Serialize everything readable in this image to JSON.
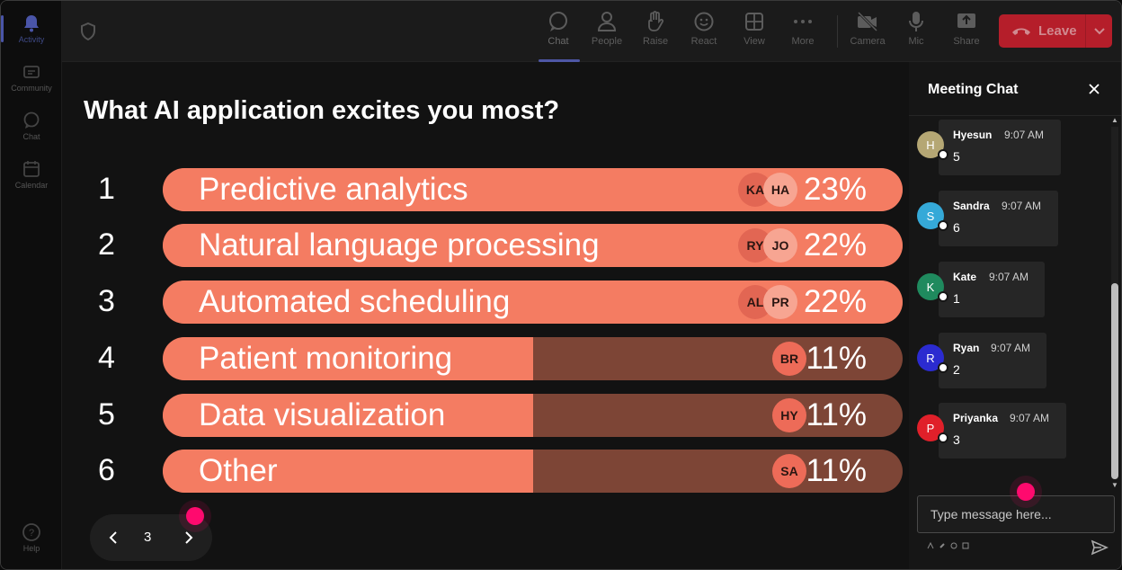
{
  "rail": {
    "items": [
      {
        "label": "Activity",
        "icon": "bell-icon",
        "active": true
      },
      {
        "label": "Community",
        "icon": "community-icon"
      },
      {
        "label": "Chat",
        "icon": "chat-icon"
      },
      {
        "label": "Calendar",
        "icon": "calendar-icon"
      }
    ],
    "help": "Help"
  },
  "toolbar": {
    "buttons": [
      {
        "label": "Chat",
        "icon": "chat-bubble-icon",
        "active": true
      },
      {
        "label": "People",
        "icon": "people-icon"
      },
      {
        "label": "Raise",
        "icon": "raise-hand-icon"
      },
      {
        "label": "React",
        "icon": "react-smiley-icon"
      },
      {
        "label": "View",
        "icon": "view-grid-icon"
      },
      {
        "label": "More",
        "icon": "more-dots-icon"
      },
      {
        "label": "Camera",
        "icon": "camera-off-icon"
      },
      {
        "label": "Mic",
        "icon": "mic-icon"
      },
      {
        "label": "Share",
        "icon": "share-icon"
      }
    ],
    "leave_label": "Leave",
    "accent_leave": "#b51e2a"
  },
  "poll": {
    "question": "What AI application excites you most?",
    "options": [
      {
        "rank": "1",
        "label": "Predictive analytics",
        "percent": "23%",
        "share": 1.0,
        "voters": [
          "KA",
          "HA"
        ]
      },
      {
        "rank": "2",
        "label": "Natural language processing",
        "percent": "22%",
        "share": 1.0,
        "voters": [
          "RY",
          "JO"
        ]
      },
      {
        "rank": "3",
        "label": "Automated scheduling",
        "percent": "22%",
        "share": 1.0,
        "voters": [
          "AL",
          "PR"
        ]
      },
      {
        "rank": "4",
        "label": "Patient monitoring",
        "percent": "11%",
        "share": 0.5,
        "voters": [
          "BR"
        ]
      },
      {
        "rank": "5",
        "label": "Data visualization",
        "percent": "11%",
        "share": 0.5,
        "voters": [
          "HY"
        ]
      },
      {
        "rank": "6",
        "label": "Other",
        "percent": "11%",
        "share": 0.5,
        "voters": [
          "SA"
        ]
      }
    ],
    "bar_color": "#f47c62",
    "bar_track_color": "#7d4536"
  },
  "pager": {
    "page": "3"
  },
  "chat": {
    "title": "Meeting Chat",
    "messages": [
      {
        "initial": "H",
        "name": "Hyesun",
        "time": "9:07 AM",
        "text": "5",
        "color": "#b5a774"
      },
      {
        "initial": "S",
        "name": "Sandra",
        "time": "9:07 AM",
        "text": "6",
        "color": "#35a9d8"
      },
      {
        "initial": "K",
        "name": "Kate",
        "time": "9:07 AM",
        "text": "1",
        "color": "#1f8a5e"
      },
      {
        "initial": "R",
        "name": "Ryan",
        "time": "9:07 AM",
        "text": "2",
        "color": "#2b2bd0"
      },
      {
        "initial": "P",
        "name": "Priyanka",
        "time": "9:07 AM",
        "text": "3",
        "color": "#e0202a"
      }
    ],
    "placeholder": "Type message here..."
  }
}
